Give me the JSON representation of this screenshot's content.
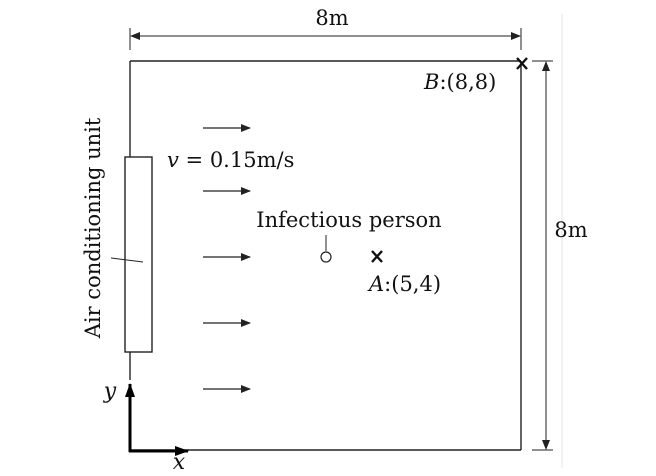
{
  "dimensions": {
    "top_width_label": "8m",
    "right_height_label": "8m"
  },
  "ac_unit": {
    "label": "Air conditioning unit"
  },
  "airflow": {
    "velocity_var": "v",
    "velocity_value": " = 0.15m/s",
    "arrow_count": 5
  },
  "infectious": {
    "label": "Infectious person"
  },
  "points": {
    "a": {
      "letter": "A",
      "coords": ":(5,4)",
      "marker": "x-mark"
    },
    "b": {
      "letter": "B",
      "coords": ":(8,8)",
      "marker": "x-mark"
    }
  },
  "axes": {
    "x_label": "x",
    "y_label": "y"
  }
}
